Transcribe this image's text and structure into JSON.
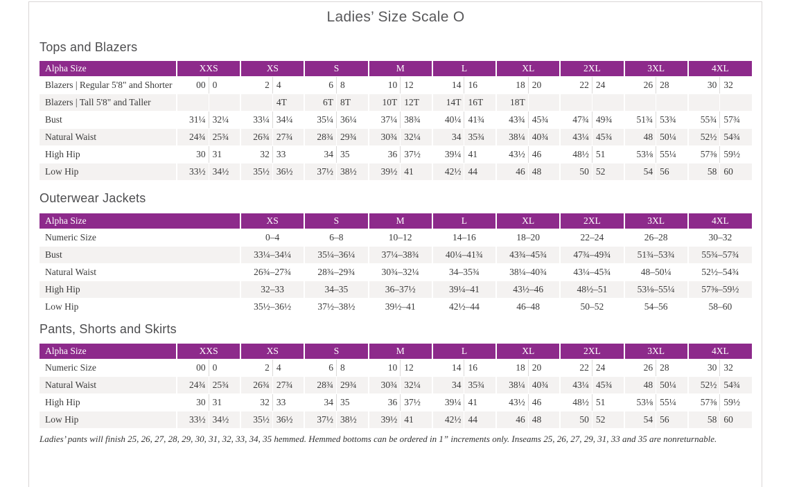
{
  "page": {
    "title": "Ladies’ Size Scale O"
  },
  "colors": {
    "header_purple": "#8d2a8b",
    "alt_row_gray": "#f4f2f1",
    "frame_gray": "#d9d6d6",
    "text_gray": "#3a3a3a"
  },
  "tables": [
    {
      "section_title": "Tops and Blazers",
      "label_header": "Alpha Size",
      "paired": true,
      "sizes": [
        "XXS",
        "XS",
        "S",
        "M",
        "L",
        "XL",
        "2XL",
        "3XL",
        "4XL"
      ],
      "rows": [
        {
          "label": "Blazers | Regular 5'8\" and Shorter",
          "cells": [
            [
              "00",
              "0"
            ],
            [
              "2",
              "4"
            ],
            [
              "6",
              "8"
            ],
            [
              "10",
              "12"
            ],
            [
              "14",
              "16"
            ],
            [
              "18",
              "20"
            ],
            [
              "22",
              "24"
            ],
            [
              "26",
              "28"
            ],
            [
              "30",
              "32"
            ]
          ]
        },
        {
          "label": "Blazers | Tall 5'8\" and Taller",
          "cells": [
            [
              "",
              ""
            ],
            [
              "",
              "4T"
            ],
            [
              "6T",
              "8T"
            ],
            [
              "10T",
              "12T"
            ],
            [
              "14T",
              "16T"
            ],
            [
              "18T",
              ""
            ],
            [
              "",
              ""
            ],
            [
              "",
              ""
            ],
            [
              "",
              ""
            ]
          ]
        },
        {
          "label": "Bust",
          "cells": [
            [
              "31¼",
              "32¼"
            ],
            [
              "33¼",
              "34¼"
            ],
            [
              "35¼",
              "36¼"
            ],
            [
              "37¼",
              "38¾"
            ],
            [
              "40¼",
              "41¾"
            ],
            [
              "43¾",
              "45¾"
            ],
            [
              "47¾",
              "49¾"
            ],
            [
              "51¾",
              "53¾"
            ],
            [
              "55¾",
              "57¾"
            ]
          ]
        },
        {
          "label": "Natural Waist",
          "cells": [
            [
              "24¾",
              "25¾"
            ],
            [
              "26¾",
              "27¾"
            ],
            [
              "28¾",
              "29¾"
            ],
            [
              "30¾",
              "32¼"
            ],
            [
              "34",
              "35¾"
            ],
            [
              "38¼",
              "40¾"
            ],
            [
              "43¼",
              "45¾"
            ],
            [
              "48",
              "50¼"
            ],
            [
              "52½",
              "54¾"
            ]
          ]
        },
        {
          "label": "High Hip",
          "cells": [
            [
              "30",
              "31"
            ],
            [
              "32",
              "33"
            ],
            [
              "34",
              "35"
            ],
            [
              "36",
              "37½"
            ],
            [
              "39¼",
              "41"
            ],
            [
              "43½",
              "46"
            ],
            [
              "48½",
              "51"
            ],
            [
              "53⅛",
              "55¼"
            ],
            [
              "57⅜",
              "59½"
            ]
          ]
        },
        {
          "label": "Low Hip",
          "cells": [
            [
              "33½",
              "34½"
            ],
            [
              "35½",
              "36½"
            ],
            [
              "37½",
              "38½"
            ],
            [
              "39½",
              "41"
            ],
            [
              "42½",
              "44"
            ],
            [
              "46",
              "48"
            ],
            [
              "50",
              "52"
            ],
            [
              "54",
              "56"
            ],
            [
              "58",
              "60"
            ]
          ]
        }
      ]
    },
    {
      "section_title": "Outerwear Jackets",
      "label_header": "Alpha Size",
      "paired": false,
      "sizes": [
        "XS",
        "S",
        "M",
        "L",
        "XL",
        "2XL",
        "3XL",
        "4XL"
      ],
      "rows": [
        {
          "label": "Numeric Size",
          "cells": [
            "0–4",
            "6–8",
            "10–12",
            "14–16",
            "18–20",
            "22–24",
            "26–28",
            "30–32"
          ]
        },
        {
          "label": "Bust",
          "cells": [
            "33¼–34¼",
            "35¼–36¼",
            "37¼–38¾",
            "40¼–41¾",
            "43¾–45¾",
            "47¾–49¾",
            "51¾–53¾",
            "55¾–57¾"
          ]
        },
        {
          "label": "Natural Waist",
          "cells": [
            "26¾–27¾",
            "28¾–29¾",
            "30¾–32¼",
            "34–35¾",
            "38¼–40¾",
            "43¼–45¾",
            "48–50¼",
            "52½–54¾"
          ]
        },
        {
          "label": "High Hip",
          "cells": [
            "32–33",
            "34–35",
            "36–37½",
            "39¼–41",
            "43½–46",
            "48½–51",
            "53⅛–55¼",
            "57⅜–59½"
          ]
        },
        {
          "label": "Low Hip",
          "cells": [
            "35½–36½",
            "37½–38½",
            "39½–41",
            "42½–44",
            "46–48",
            "50–52",
            "54–56",
            "58–60"
          ]
        }
      ]
    },
    {
      "section_title": "Pants, Shorts and Skirts",
      "label_header": "Alpha Size",
      "paired": true,
      "sizes": [
        "XXS",
        "XS",
        "S",
        "M",
        "L",
        "XL",
        "2XL",
        "3XL",
        "4XL"
      ],
      "rows": [
        {
          "label": "Numeric Size",
          "cells": [
            [
              "00",
              "0"
            ],
            [
              "2",
              "4"
            ],
            [
              "6",
              "8"
            ],
            [
              "10",
              "12"
            ],
            [
              "14",
              "16"
            ],
            [
              "18",
              "20"
            ],
            [
              "22",
              "24"
            ],
            [
              "26",
              "28"
            ],
            [
              "30",
              "32"
            ]
          ]
        },
        {
          "label": "Natural Waist",
          "cells": [
            [
              "24¾",
              "25¾"
            ],
            [
              "26¾",
              "27¾"
            ],
            [
              "28¾",
              "29¾"
            ],
            [
              "30¾",
              "32¼"
            ],
            [
              "34",
              "35¾"
            ],
            [
              "38¼",
              "40¾"
            ],
            [
              "43¼",
              "45¾"
            ],
            [
              "48",
              "50¼"
            ],
            [
              "52½",
              "54¾"
            ]
          ]
        },
        {
          "label": "High Hip",
          "cells": [
            [
              "30",
              "31"
            ],
            [
              "32",
              "33"
            ],
            [
              "34",
              "35"
            ],
            [
              "36",
              "37½"
            ],
            [
              "39¼",
              "41"
            ],
            [
              "43½",
              "46"
            ],
            [
              "48½",
              "51"
            ],
            [
              "53⅛",
              "55¼"
            ],
            [
              "57⅜",
              "59½"
            ]
          ]
        },
        {
          "label": "Low Hip",
          "cells": [
            [
              "33½",
              "34½"
            ],
            [
              "35½",
              "36½"
            ],
            [
              "37½",
              "38½"
            ],
            [
              "39½",
              "41"
            ],
            [
              "42½",
              "44"
            ],
            [
              "46",
              "48"
            ],
            [
              "50",
              "52"
            ],
            [
              "54",
              "56"
            ],
            [
              "58",
              "60"
            ]
          ]
        }
      ]
    }
  ],
  "footnote": "Ladies’ pants will finish 25, 26, 27, 28, 29, 30, 31, 32, 33, 34, 35 hemmed. Hemmed bottoms can be ordered in 1” increments only. Inseams 25, 26, 27, 29, 31, 33 and 35 are nonreturnable."
}
